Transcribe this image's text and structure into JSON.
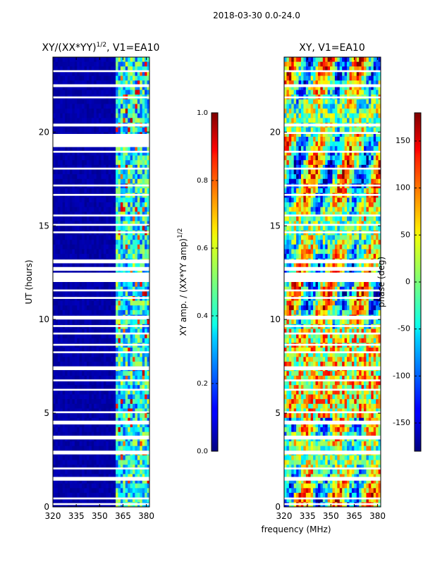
{
  "suptitle": "2018-03-30 0.0-24.0",
  "xlabel_shared": "frequency (MHz)",
  "chart_data": [
    {
      "type": "heatmap",
      "title": "XY/(XX*YY)",
      "title_sup": "1/2",
      "title_suffix": ", V1=EA10",
      "xlabel": "frequency (MHz)",
      "ylabel": "UT (hours)",
      "xlim": [
        320,
        382
      ],
      "ylim": [
        0,
        24
      ],
      "xticks": [
        320,
        335,
        350,
        365,
        380
      ],
      "yticks": [
        0,
        5,
        10,
        15,
        20
      ],
      "colormap": "jet",
      "colorbar": {
        "label": "XY amp. / (XX*YY amp)",
        "label_sup": "1/2",
        "range": [
          0.0,
          1.0
        ],
        "ticks": [
          "0.0",
          "0.2",
          "0.4",
          "0.6",
          "0.8",
          "1.0"
        ]
      },
      "gaps_hours": [
        [
          23.2,
          23.3
        ],
        [
          22.4,
          22.55
        ],
        [
          21.8,
          21.9
        ],
        [
          20.3,
          20.45
        ],
        [
          19.2,
          19.9
        ],
        [
          18.9,
          19.0
        ],
        [
          18.0,
          18.1
        ],
        [
          17.1,
          17.2
        ],
        [
          16.6,
          16.7
        ],
        [
          15.5,
          15.6
        ],
        [
          15.0,
          15.1
        ],
        [
          14.6,
          14.7
        ],
        [
          13.0,
          13.2
        ],
        [
          12.6,
          12.8
        ],
        [
          12.0,
          12.5
        ],
        [
          11.5,
          11.6
        ],
        [
          11.1,
          11.2
        ],
        [
          10.0,
          10.2
        ],
        [
          9.6,
          9.7
        ],
        [
          9.2,
          9.3
        ],
        [
          8.6,
          8.7
        ],
        [
          8.2,
          8.3
        ],
        [
          7.3,
          7.5
        ],
        [
          6.7,
          6.8
        ],
        [
          6.2,
          6.3
        ],
        [
          5.0,
          5.1
        ],
        [
          4.4,
          4.6
        ],
        [
          3.6,
          3.8
        ],
        [
          2.8,
          3.0
        ],
        [
          2.0,
          2.1
        ],
        [
          1.4,
          1.6
        ],
        [
          0.4,
          0.5
        ],
        [
          0.1,
          0.2
        ]
      ]
    },
    {
      "type": "heatmap",
      "title": "XY, V1=EA10",
      "xlabel": "frequency (MHz)",
      "ylabel": "",
      "xlim": [
        320,
        382
      ],
      "ylim": [
        0,
        24
      ],
      "xticks": [
        320,
        335,
        350,
        365,
        380
      ],
      "yticks": [
        0,
        5,
        10,
        15,
        20
      ],
      "colormap": "jet",
      "colorbar": {
        "label": "phase (deg)",
        "range": [
          -180,
          180
        ],
        "ticks": [
          "-150",
          "-100",
          "-50",
          "0",
          "50",
          "100",
          "150"
        ]
      },
      "gaps_hours": [
        [
          23.2,
          23.3
        ],
        [
          22.4,
          22.55
        ],
        [
          21.8,
          21.9
        ],
        [
          20.3,
          20.45
        ],
        [
          19.9,
          20.0
        ],
        [
          18.9,
          19.0
        ],
        [
          18.0,
          18.1
        ],
        [
          17.1,
          17.2
        ],
        [
          16.6,
          16.7
        ],
        [
          15.5,
          15.6
        ],
        [
          15.0,
          15.1
        ],
        [
          14.6,
          14.7
        ],
        [
          13.0,
          13.2
        ],
        [
          12.6,
          12.8
        ],
        [
          12.0,
          12.5
        ],
        [
          11.5,
          11.6
        ],
        [
          11.1,
          11.2
        ],
        [
          10.0,
          10.2
        ],
        [
          9.6,
          9.7
        ],
        [
          9.2,
          9.3
        ],
        [
          8.6,
          8.7
        ],
        [
          8.2,
          8.3
        ],
        [
          7.3,
          7.5
        ],
        [
          6.7,
          6.8
        ],
        [
          6.2,
          6.3
        ],
        [
          5.0,
          5.1
        ],
        [
          4.4,
          4.6
        ],
        [
          3.6,
          3.8
        ],
        [
          2.8,
          3.0
        ],
        [
          2.0,
          2.1
        ],
        [
          1.4,
          1.6
        ],
        [
          0.4,
          0.5
        ],
        [
          0.1,
          0.2
        ]
      ]
    }
  ]
}
